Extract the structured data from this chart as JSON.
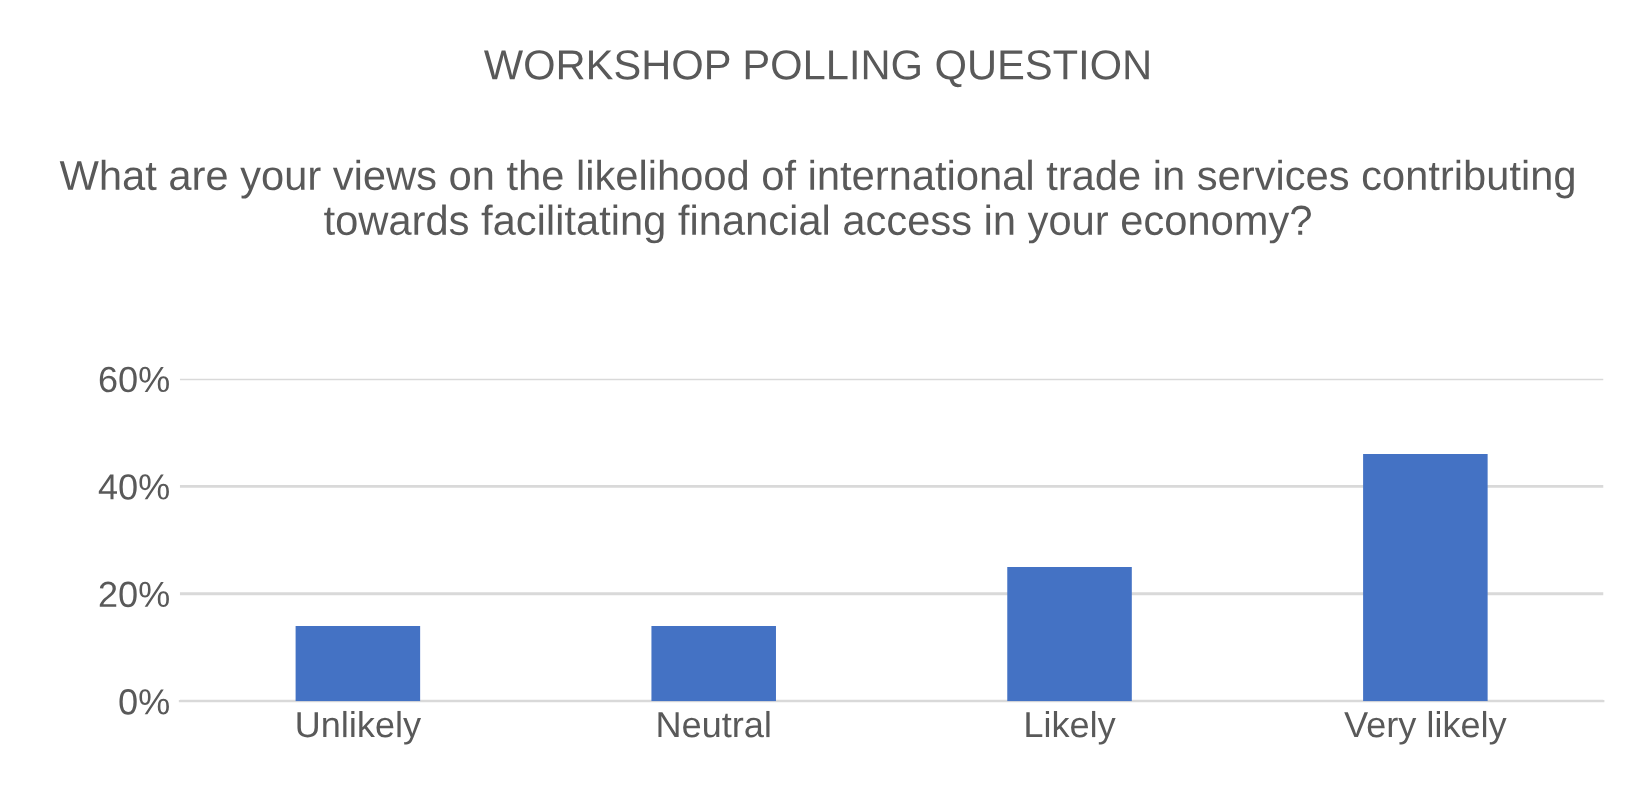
{
  "chart_data": {
    "type": "bar",
    "title": "WORKSHOP POLLING QUESTION",
    "subtitle": "What are your views on the likelihood of international trade in services contributing towards facilitating financial access in your economy?",
    "categories": [
      "Unlikely",
      "Neutral",
      "Likely",
      "Very likely"
    ],
    "values": [
      0.14,
      0.14,
      0.25,
      0.46
    ],
    "color": "#4472c4",
    "ylim": [
      0,
      0.6
    ],
    "yticks": [
      {
        "value": 0,
        "label": "0%"
      },
      {
        "value": 0.2,
        "label": "20%"
      },
      {
        "value": 0.4,
        "label": "40%"
      },
      {
        "value": 0.6,
        "label": "60%"
      }
    ],
    "grid": "y"
  }
}
